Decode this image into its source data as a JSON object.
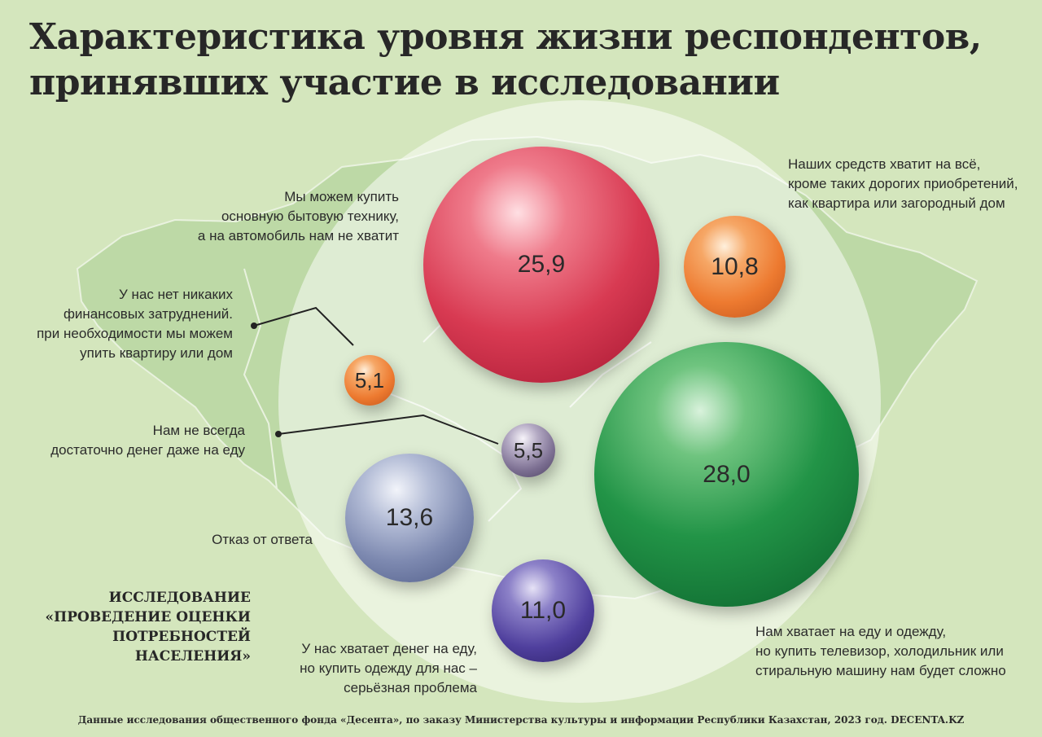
{
  "title_lines": [
    "Характеристика уровня жизни респондентов,",
    "принявших участие в исследовании"
  ],
  "study_lines": [
    "ИССЛЕДОВАНИЕ",
    "«ПРОВЕДЕНИЕ ОЦЕНКИ",
    "ПОТРЕБНОСТЕЙ",
    "НАСЕЛЕНИЯ»"
  ],
  "source": "Данные исследования общественного фонда «Десента», по заказу Министерства культуры и информации Республики Казахстан, 2023 год. DECENTA.KZ",
  "chart_data": {
    "type": "bubble",
    "title": "Характеристика уровня жизни респондентов, принявших участие в исследовании",
    "unit": "",
    "points": [
      {
        "value": "25,9",
        "v": 25.9,
        "color": "#d83a52",
        "label_lines": [
          "Мы можем купить",
          "основную бытовую технику,",
          "а на автомобиль нам не хватит"
        ]
      },
      {
        "value": "10,8",
        "v": 10.8,
        "color": "#ed7a30",
        "label_lines": [
          "Наших средств хватит на всё,",
          "кроме таких дорогих приобретений,",
          "как квартира или загородный дом"
        ]
      },
      {
        "value": "5,1",
        "v": 5.1,
        "color": "#ed7a30",
        "label_lines": [
          "У нас нет никаких",
          "финансовых затруднений.",
          "при необходимости мы можем",
          "упить квартиру или дом"
        ]
      },
      {
        "value": "5,5",
        "v": 5.5,
        "color": "#7a6d90",
        "label_lines": [
          "Нам не всегда",
          "достаточно денег даже на еду"
        ]
      },
      {
        "value": "28,0",
        "v": 28.0,
        "color": "#229447",
        "label_lines": [
          "Нам хватает на еду и одежду,",
          "но купить телевизор, холодильник или",
          "стиральную машину нам будет сложно"
        ]
      },
      {
        "value": "13,6",
        "v": 13.6,
        "color": "#7d89b0",
        "label_lines": [
          "Отказ от ответа"
        ]
      },
      {
        "value": "11,0",
        "v": 11.0,
        "color": "#4f3f9d",
        "label_lines": [
          "У нас хватает денег на еду,",
          "но купить одежду для нас –",
          "серьёзная проблема"
        ]
      }
    ]
  }
}
